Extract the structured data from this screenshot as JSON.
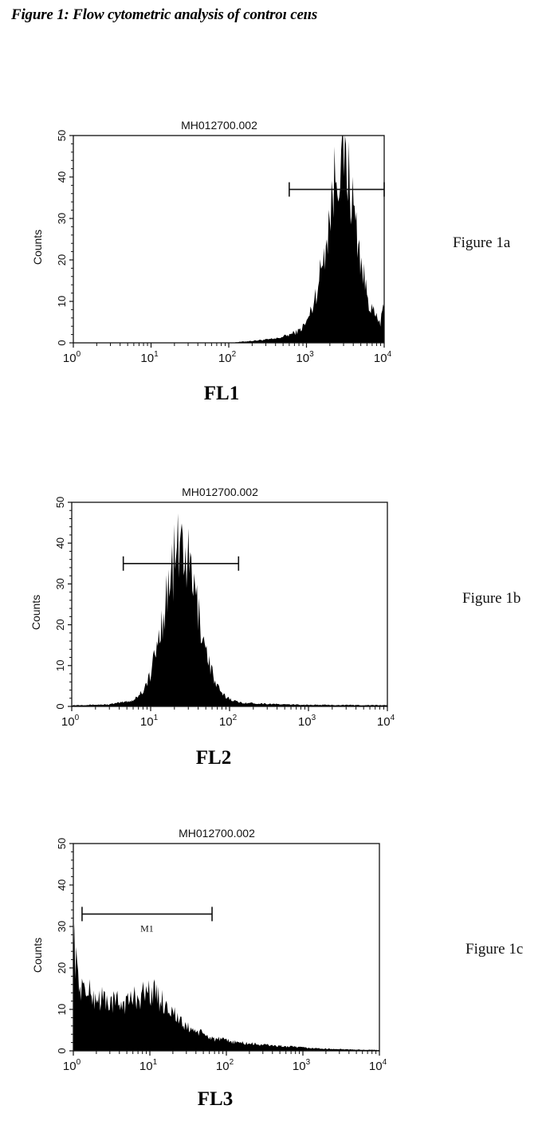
{
  "page": {
    "title": "Figure 1: Flow cytometric analysis of controı ceııs"
  },
  "colors": {
    "fill": "#000000",
    "axis": "#111111",
    "background": "#ffffff"
  },
  "chart_data": [
    {
      "type": "area",
      "id": "fig1a",
      "side_label": "Figure 1a",
      "channel_label": "FL1",
      "title": "MH012700.002",
      "xlabel": "",
      "ylabel": "Counts",
      "x_scale": "log",
      "xlim": [
        1,
        10000
      ],
      "ylim": [
        0,
        50
      ],
      "xtick_labels": [
        "10^0",
        "10^1",
        "10^2",
        "10^3",
        "10^4"
      ],
      "ytick_labels": [
        "0",
        "10",
        "20",
        "30",
        "40",
        "50"
      ],
      "marker": {
        "x_start": 600,
        "x_end": 10000,
        "y": 37,
        "label": ""
      },
      "series": [
        {
          "x": [
            1,
            100,
            200,
            400,
            600,
            800,
            1000,
            1200,
            1500,
            1800,
            2100,
            2400,
            2700,
            3000,
            3300,
            3600,
            4000,
            4500,
            5000,
            5600,
            6300,
            7000,
            8000,
            9000,
            10000
          ],
          "values": [
            0,
            0,
            0.5,
            1,
            2,
            3,
            5,
            9,
            17,
            26,
            35,
            43,
            47,
            47,
            44,
            40,
            34,
            27,
            21,
            15,
            11,
            8,
            6,
            5,
            9
          ]
        }
      ]
    },
    {
      "type": "area",
      "id": "fig1b",
      "side_label": "Figure 1b",
      "channel_label": "FL2",
      "title": "MH012700.002",
      "xlabel": "",
      "ylabel": "Counts",
      "x_scale": "log",
      "xlim": [
        1,
        10000
      ],
      "ylim": [
        0,
        50
      ],
      "xtick_labels": [
        "10^0",
        "10^1",
        "10^2",
        "10^3",
        "10^4"
      ],
      "ytick_labels": [
        "0",
        "10",
        "20",
        "30",
        "40",
        "50"
      ],
      "marker": {
        "x_start": 4.5,
        "x_end": 130,
        "y": 35,
        "label": ""
      },
      "series": [
        {
          "x": [
            1,
            3,
            6,
            8,
            10,
            12,
            14,
            16,
            18,
            20,
            22,
            25,
            28,
            32,
            36,
            40,
            45,
            50,
            56,
            63,
            70,
            80,
            100,
            130,
            200,
            500,
            1000,
            10000
          ],
          "values": [
            0.3,
            0.5,
            1.5,
            4,
            8,
            15,
            22,
            28,
            33,
            37,
            39,
            41,
            38,
            34,
            29,
            24,
            19,
            15,
            11,
            7,
            5,
            3,
            2,
            1,
            0.8,
            0.5,
            0.4,
            0.3
          ]
        }
      ]
    },
    {
      "type": "area",
      "id": "fig1c",
      "side_label": "Figure 1c",
      "channel_label": "FL3",
      "title": "MH012700.002",
      "xlabel": "",
      "ylabel": "Counts",
      "x_scale": "log",
      "xlim": [
        1,
        10000
      ],
      "ylim": [
        0,
        50
      ],
      "xtick_labels": [
        "10^0",
        "10^1",
        "10^2",
        "10^3",
        "10^4"
      ],
      "ytick_labels": [
        "0",
        "10",
        "20",
        "30",
        "40",
        "50"
      ],
      "marker": {
        "x_start": 1.3,
        "x_end": 65,
        "y": 33,
        "label": "M1"
      },
      "series": [
        {
          "x": [
            1,
            1.1,
            1.2,
            1.4,
            1.7,
            2,
            2.5,
            3,
            4,
            5,
            6,
            8,
            10,
            12,
            15,
            20,
            25,
            30,
            40,
            50,
            70,
            100,
            150,
            200,
            300,
            500,
            700,
            1000,
            2000,
            5000,
            10000
          ],
          "values": [
            30,
            20,
            17,
            15,
            14,
            13,
            13,
            12,
            12,
            12,
            13,
            14,
            15,
            14,
            12,
            10,
            7,
            6,
            5,
            4,
            3,
            2.5,
            2,
            1.8,
            1.5,
            1.2,
            1,
            0.8,
            0.5,
            0.3,
            0.2
          ]
        }
      ]
    }
  ]
}
